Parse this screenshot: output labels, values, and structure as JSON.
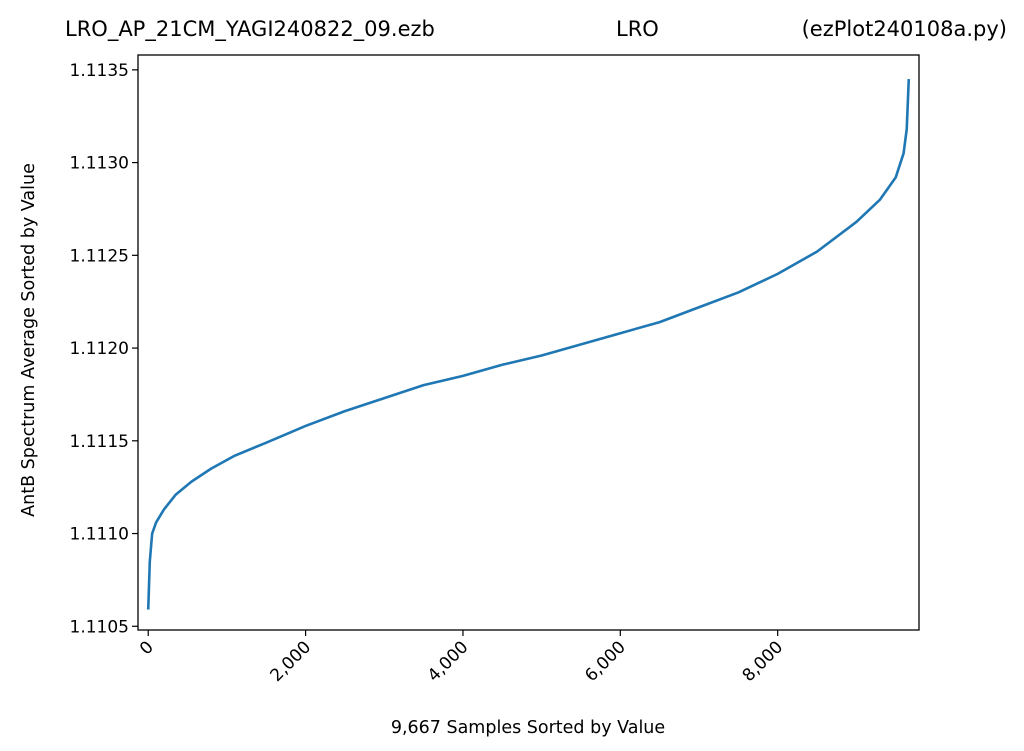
{
  "chart_data": {
    "type": "line",
    "title_left": "LRO_AP_21CM_YAGI240822_09.ezb",
    "title_center": "LRO",
    "title_right": "(ezPlot240108a.py)",
    "xlabel": "9,667 Samples Sorted by Value",
    "ylabel": "AntB Spectrum Average Sorted by Value",
    "xlim": [
      -130,
      9796
    ],
    "ylim": [
      1.11048,
      1.11358
    ],
    "x_ticks": [
      0,
      2000,
      4000,
      6000,
      8000
    ],
    "x_tick_labels": [
      "0",
      "2,000",
      "4,000",
      "6,000",
      "8,000"
    ],
    "y_ticks": [
      1.1105,
      1.111,
      1.1115,
      1.112,
      1.1125,
      1.113,
      1.1135
    ],
    "y_tick_labels": [
      "1.1105",
      "1.1110",
      "1.1115",
      "1.1120",
      "1.1125",
      "1.1130",
      "1.1135"
    ],
    "grid": false,
    "line_color": "#1f77b4",
    "series": [
      {
        "x": [
          0,
          20,
          50,
          100,
          200,
          350,
          550,
          800,
          1100,
          1500,
          2000,
          2500,
          3000,
          3500,
          4000,
          4500,
          5000,
          5500,
          6000,
          6500,
          7000,
          7500,
          8000,
          8500,
          9000,
          9300,
          9500,
          9600,
          9640,
          9666
        ],
        "y": [
          1.11059,
          1.11085,
          1.111,
          1.11106,
          1.11113,
          1.11121,
          1.11128,
          1.11135,
          1.11142,
          1.11149,
          1.11158,
          1.11166,
          1.11173,
          1.1118,
          1.11185,
          1.11191,
          1.11196,
          1.11202,
          1.11208,
          1.11214,
          1.11222,
          1.1123,
          1.1124,
          1.11252,
          1.11268,
          1.1128,
          1.11292,
          1.11305,
          1.11318,
          1.11345
        ]
      }
    ]
  }
}
